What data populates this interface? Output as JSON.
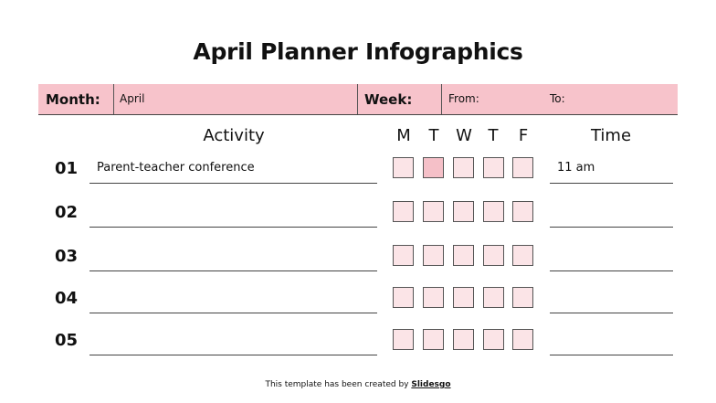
{
  "title": "April Planner Infographics",
  "header": {
    "month_label": "Month:",
    "month_value": "April",
    "week_label": "Week:",
    "from_label": "From:",
    "to_label": "To:"
  },
  "columns": {
    "activity": "Activity",
    "days": [
      "M",
      "T",
      "W",
      "T",
      "F"
    ],
    "time": "Time"
  },
  "rows": [
    {
      "num": "01",
      "activity": "Parent-teacher conference",
      "days": [
        false,
        true,
        false,
        false,
        false
      ],
      "time": "11 am"
    },
    {
      "num": "02",
      "activity": "",
      "days": [
        false,
        false,
        false,
        false,
        false
      ],
      "time": ""
    },
    {
      "num": "03",
      "activity": "",
      "days": [
        false,
        false,
        false,
        false,
        false
      ],
      "time": ""
    },
    {
      "num": "04",
      "activity": "",
      "days": [
        false,
        false,
        false,
        false,
        false
      ],
      "time": ""
    },
    {
      "num": "05",
      "activity": "",
      "days": [
        false,
        false,
        false,
        false,
        false
      ],
      "time": ""
    }
  ],
  "footer": {
    "text": "This template has been created by ",
    "brand": "Slidesgo"
  },
  "colors": {
    "band": "#f7c3cb",
    "box": "#fbe4e7",
    "box_checked": "#f5c0c8"
  }
}
